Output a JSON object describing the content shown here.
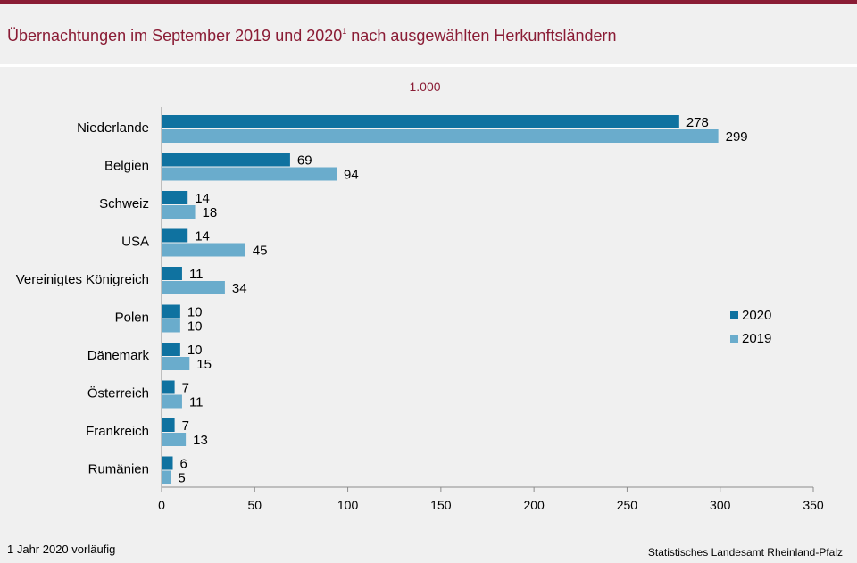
{
  "header": {
    "title_main": "Übernachtungen im September 2019 und 2020",
    "title_sup": "1",
    "title_rest": " nach ausgewählten Herkunftsländern"
  },
  "unit_label": "1.000",
  "footnote": "1 Jahr 2020 vorläufig",
  "source": "Statistisches Landesamt  Rheinland-Pfalz",
  "colors": {
    "brand": "#8a1c35",
    "series_2020": "#0f72a0",
    "series_2019": "#6aaccc"
  },
  "chart_data": {
    "type": "bar",
    "orientation": "horizontal",
    "categories": [
      "Niederlande",
      "Belgien",
      "Schweiz",
      "USA",
      "Vereinigtes Königreich",
      "Polen",
      "Dänemark",
      "Österreich",
      "Frankreich",
      "Rumänien"
    ],
    "series": [
      {
        "name": "2020",
        "values": [
          278,
          69,
          14,
          14,
          11,
          10,
          10,
          7,
          7,
          6
        ]
      },
      {
        "name": "2019",
        "values": [
          299,
          94,
          18,
          45,
          34,
          10,
          15,
          11,
          13,
          5
        ]
      }
    ],
    "xlim": [
      0,
      350
    ],
    "xticks": [
      0,
      50,
      100,
      150,
      200,
      250,
      300,
      350
    ],
    "legend_position": "right",
    "grid": false
  }
}
